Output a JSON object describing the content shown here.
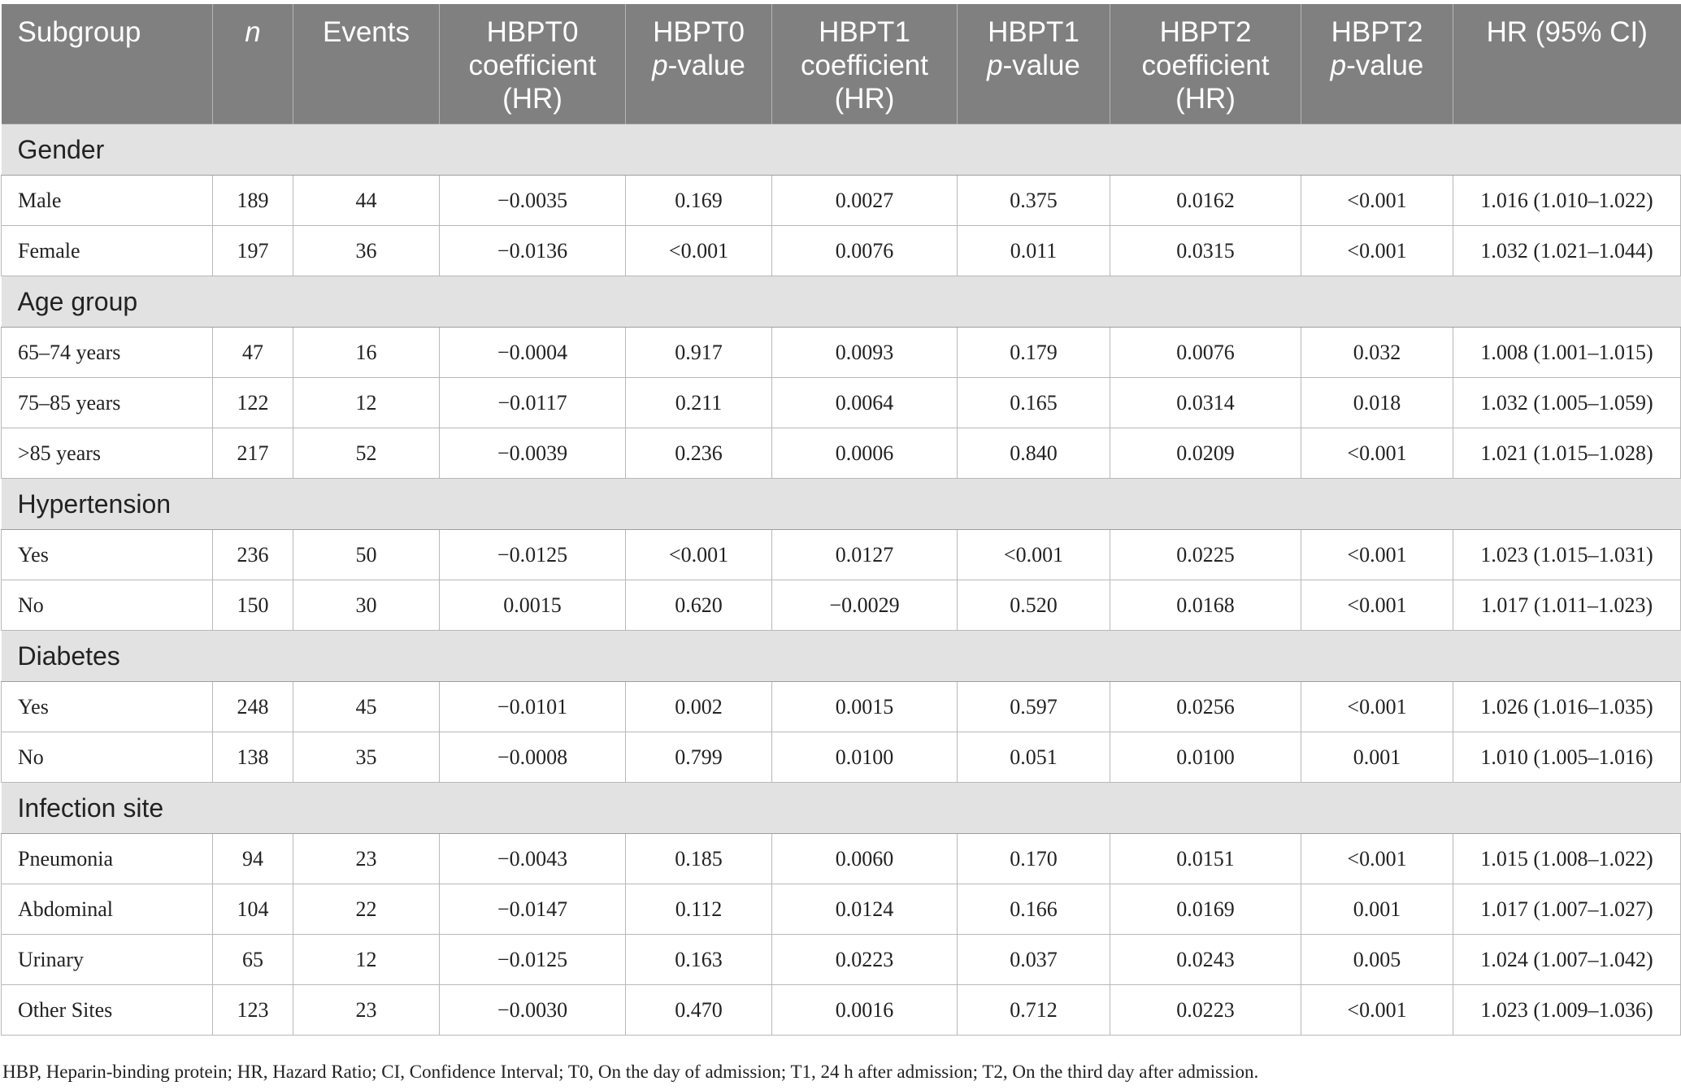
{
  "header": {
    "subgroup": "Subgroup",
    "n": "n",
    "events": "Events",
    "hbpt0_coef_l1": "HBPT0",
    "hbpt0_coef_l2": "coefficient",
    "hbpt0_coef_l3": "(HR)",
    "hbpt0_p_l1": "HBPT0",
    "hbpt0_p_italic": "p",
    "hbpt0_p_rest": "-value",
    "hbpt1_coef_l1": "HBPT1",
    "hbpt1_coef_l2": "coefficient",
    "hbpt1_coef_l3": "(HR)",
    "hbpt1_p_l1": "HBPT1",
    "hbpt1_p_italic": "p",
    "hbpt1_p_rest": "-value",
    "hbpt2_coef_l1": "HBPT2",
    "hbpt2_coef_l2": "coefficient",
    "hbpt2_coef_l3": "(HR)",
    "hbpt2_p_l1": "HBPT2",
    "hbpt2_p_italic": "p",
    "hbpt2_p_rest": "-value",
    "hr_ci": "HR (95% CI)"
  },
  "groups": [
    {
      "label": "Gender",
      "rows": [
        [
          "Male",
          "189",
          "44",
          "−0.0035",
          "0.169",
          "0.0027",
          "0.375",
          "0.0162",
          "<0.001",
          "1.016 (1.010–1.022)"
        ],
        [
          "Female",
          "197",
          "36",
          "−0.0136",
          "<0.001",
          "0.0076",
          "0.011",
          "0.0315",
          "<0.001",
          "1.032 (1.021–1.044)"
        ]
      ]
    },
    {
      "label": "Age group",
      "rows": [
        [
          "65–74 years",
          "47",
          "16",
          "−0.0004",
          "0.917",
          "0.0093",
          "0.179",
          "0.0076",
          "0.032",
          "1.008 (1.001–1.015)"
        ],
        [
          "75–85 years",
          "122",
          "12",
          "−0.0117",
          "0.211",
          "0.0064",
          "0.165",
          "0.0314",
          "0.018",
          "1.032 (1.005–1.059)"
        ],
        [
          ">85 years",
          "217",
          "52",
          "−0.0039",
          "0.236",
          "0.0006",
          "0.840",
          "0.0209",
          "<0.001",
          "1.021 (1.015–1.028)"
        ]
      ]
    },
    {
      "label": "Hypertension",
      "rows": [
        [
          "Yes",
          "236",
          "50",
          "−0.0125",
          "<0.001",
          "0.0127",
          "<0.001",
          "0.0225",
          "<0.001",
          "1.023 (1.015–1.031)"
        ],
        [
          "No",
          "150",
          "30",
          "0.0015",
          "0.620",
          "−0.0029",
          "0.520",
          "0.0168",
          "<0.001",
          "1.017 (1.011–1.023)"
        ]
      ]
    },
    {
      "label": "Diabetes",
      "rows": [
        [
          "Yes",
          "248",
          "45",
          "−0.0101",
          "0.002",
          "0.0015",
          "0.597",
          "0.0256",
          "<0.001",
          "1.026 (1.016–1.035)"
        ],
        [
          "No",
          "138",
          "35",
          "−0.0008",
          "0.799",
          "0.0100",
          "0.051",
          "0.0100",
          "0.001",
          "1.010 (1.005–1.016)"
        ]
      ]
    },
    {
      "label": "Infection site",
      "rows": [
        [
          "Pneumonia",
          "94",
          "23",
          "−0.0043",
          "0.185",
          "0.0060",
          "0.170",
          "0.0151",
          "<0.001",
          "1.015 (1.008–1.022)"
        ],
        [
          "Abdominal",
          "104",
          "22",
          "−0.0147",
          "0.112",
          "0.0124",
          "0.166",
          "0.0169",
          "0.001",
          "1.017 (1.007–1.027)"
        ],
        [
          "Urinary",
          "65",
          "12",
          "−0.0125",
          "0.163",
          "0.0223",
          "0.037",
          "0.0243",
          "0.005",
          "1.024 (1.007–1.042)"
        ],
        [
          "Other Sites",
          "123",
          "23",
          "−0.0030",
          "0.470",
          "0.0016",
          "0.712",
          "0.0223",
          "<0.001",
          "1.023 (1.009–1.036)"
        ]
      ]
    }
  ],
  "footnote": "HBP, Heparin-binding protein; HR, Hazard Ratio; CI, Confidence Interval; T0, On the day of admission; T1, 24 h after admission; T2, On the third day after admission."
}
